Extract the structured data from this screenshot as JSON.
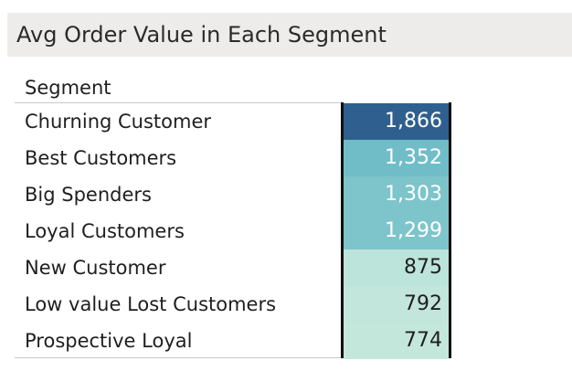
{
  "title": "Avg Order Value in Each Segment",
  "colors": {
    "title_bg": "#eeeceb",
    "scale": [
      "#c4e7dc",
      "#a7dcd4",
      "#4aa8c0",
      "#2f5f8f"
    ]
  },
  "chart_data": {
    "type": "table",
    "title": "Avg Order Value in Each Segment",
    "column_header": "Segment",
    "encoding": "highlight table, cell color intensity by value",
    "rows": [
      {
        "segment": "Churning Customer",
        "value": 1866,
        "display": "1,866"
      },
      {
        "segment": "Best Customers",
        "value": 1352,
        "display": "1,352"
      },
      {
        "segment": "Big Spenders",
        "value": 1303,
        "display": "1,303"
      },
      {
        "segment": "Loyal Customers",
        "value": 1299,
        "display": "1,299"
      },
      {
        "segment": "New Customer",
        "value": 875,
        "display": "875"
      },
      {
        "segment": "Low value Lost Customers",
        "value": 792,
        "display": "792"
      },
      {
        "segment": "Prospective Loyal",
        "value": 774,
        "display": "774"
      }
    ]
  }
}
